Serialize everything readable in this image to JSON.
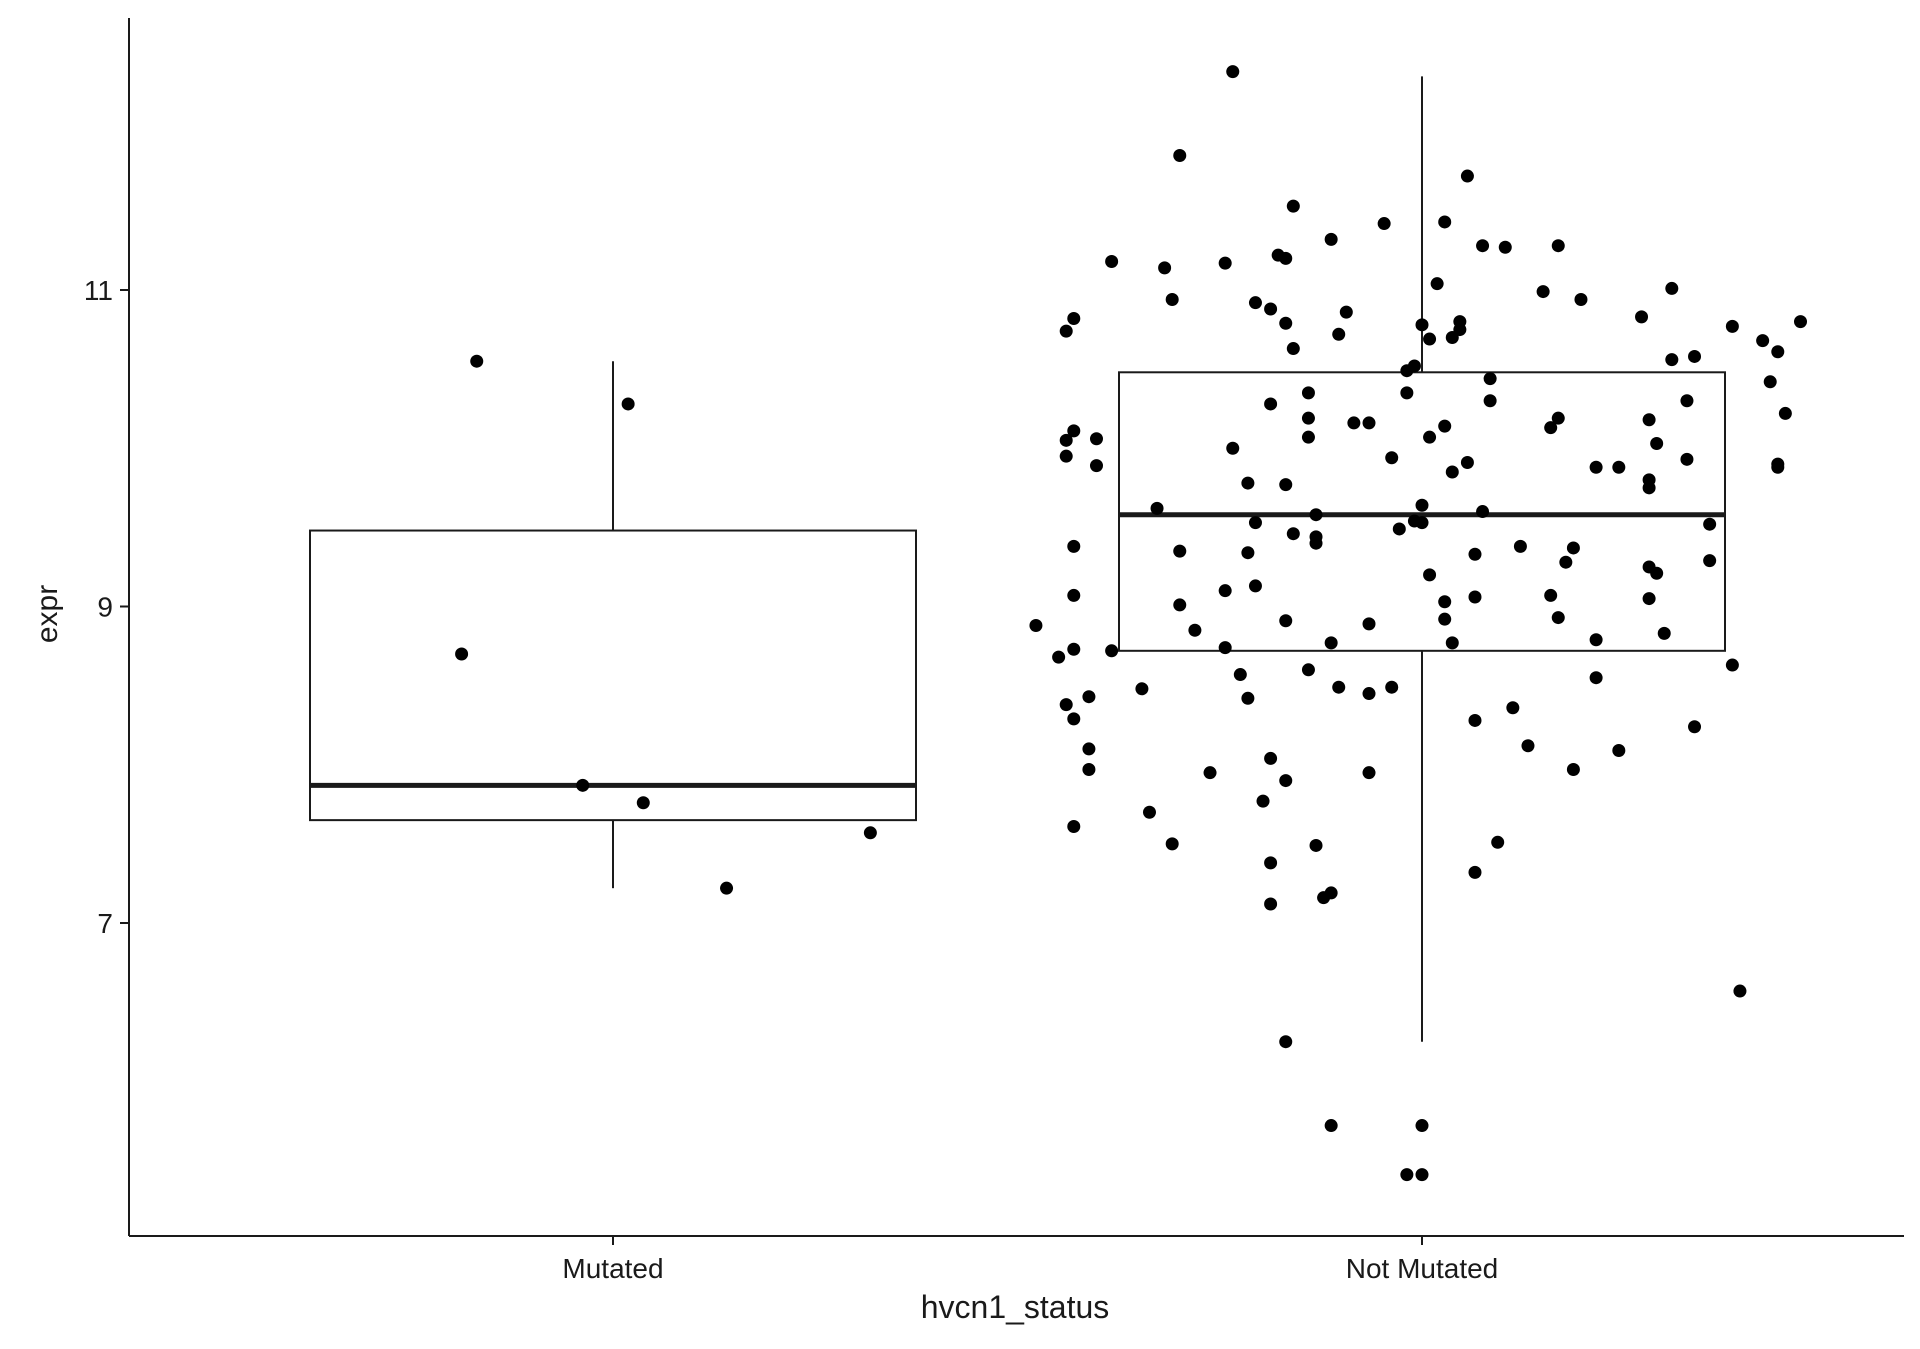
{
  "chart_data": {
    "type": "boxplot",
    "xlabel": "hvcn1_status",
    "ylabel": "expr",
    "categories": [
      "Mutated",
      "Not Mutated"
    ],
    "ylim": [
      4.8,
      12.5
    ],
    "y_ticks": [
      7,
      9,
      11
    ],
    "grid": false,
    "legend": "none",
    "colors": {
      "axis": "#1a1a1a",
      "box": "#1a1a1a",
      "point": "#000000",
      "background": "#ffffff"
    },
    "boxes": [
      {
        "category": "Mutated",
        "whisker_low": 7.22,
        "q1": 7.65,
        "median": 7.87,
        "q3": 9.48,
        "whisker_high": 10.55
      },
      {
        "category": "Not Mutated",
        "whisker_low": 6.25,
        "q1": 8.72,
        "median": 9.58,
        "q3": 10.48,
        "whisker_high": 12.35
      }
    ],
    "points": [
      {
        "category": "Mutated",
        "offset": -0.18,
        "y": 10.55
      },
      {
        "category": "Mutated",
        "offset": 0.02,
        "y": 10.28
      },
      {
        "category": "Mutated",
        "offset": -0.2,
        "y": 8.7
      },
      {
        "category": "Mutated",
        "offset": -0.04,
        "y": 7.87
      },
      {
        "category": "Mutated",
        "offset": 0.04,
        "y": 7.76
      },
      {
        "category": "Mutated",
        "offset": 0.15,
        "y": 7.22
      },
      {
        "category": "Mutated",
        "offset": 0.34,
        "y": 7.57
      },
      {
        "category": "Not Mutated",
        "offset": -0.25,
        "y": 12.38
      },
      {
        "category": "Not Mutated",
        "offset": -0.32,
        "y": 11.85
      },
      {
        "category": "Not Mutated",
        "offset": 0.06,
        "y": 11.72
      },
      {
        "category": "Not Mutated",
        "offset": -0.17,
        "y": 11.53
      },
      {
        "category": "Not Mutated",
        "offset": -0.05,
        "y": 11.42
      },
      {
        "category": "Not Mutated",
        "offset": 0.03,
        "y": 11.43
      },
      {
        "category": "Not Mutated",
        "offset": -0.12,
        "y": 11.32
      },
      {
        "category": "Not Mutated",
        "offset": 0.08,
        "y": 11.28
      },
      {
        "category": "Not Mutated",
        "offset": 0.11,
        "y": 11.27
      },
      {
        "category": "Not Mutated",
        "offset": 0.18,
        "y": 11.28
      },
      {
        "category": "Not Mutated",
        "offset": -0.18,
        "y": 11.2
      },
      {
        "category": "Not Mutated",
        "offset": -0.19,
        "y": 11.22
      },
      {
        "category": "Not Mutated",
        "offset": -0.41,
        "y": 11.18
      },
      {
        "category": "Not Mutated",
        "offset": -0.34,
        "y": 11.14
      },
      {
        "category": "Not Mutated",
        "offset": -0.26,
        "y": 11.17
      },
      {
        "category": "Not Mutated",
        "offset": 0.02,
        "y": 11.04
      },
      {
        "category": "Not Mutated",
        "offset": 0.16,
        "y": 10.99
      },
      {
        "category": "Not Mutated",
        "offset": 0.21,
        "y": 10.94
      },
      {
        "category": "Not Mutated",
        "offset": 0.33,
        "y": 11.01
      },
      {
        "category": "Not Mutated",
        "offset": -0.33,
        "y": 10.94
      },
      {
        "category": "Not Mutated",
        "offset": -0.22,
        "y": 10.92
      },
      {
        "category": "Not Mutated",
        "offset": -0.2,
        "y": 10.88
      },
      {
        "category": "Not Mutated",
        "offset": -0.1,
        "y": 10.86
      },
      {
        "category": "Not Mutated",
        "offset": -0.46,
        "y": 10.82
      },
      {
        "category": "Not Mutated",
        "offset": -0.47,
        "y": 10.74
      },
      {
        "category": "Not Mutated",
        "offset": -0.18,
        "y": 10.79
      },
      {
        "category": "Not Mutated",
        "offset": -0.11,
        "y": 10.72
      },
      {
        "category": "Not Mutated",
        "offset": 0.0,
        "y": 10.78
      },
      {
        "category": "Not Mutated",
        "offset": 0.01,
        "y": 10.69
      },
      {
        "category": "Not Mutated",
        "offset": 0.04,
        "y": 10.7
      },
      {
        "category": "Not Mutated",
        "offset": 0.05,
        "y": 10.75
      },
      {
        "category": "Not Mutated",
        "offset": 0.05,
        "y": 10.8
      },
      {
        "category": "Not Mutated",
        "offset": 0.29,
        "y": 10.83
      },
      {
        "category": "Not Mutated",
        "offset": 0.41,
        "y": 10.77
      },
      {
        "category": "Not Mutated",
        "offset": 0.45,
        "y": 10.68
      },
      {
        "category": "Not Mutated",
        "offset": 0.47,
        "y": 10.61
      },
      {
        "category": "Not Mutated",
        "offset": 0.5,
        "y": 10.8
      },
      {
        "category": "Not Mutated",
        "offset": -0.17,
        "y": 10.63
      },
      {
        "category": "Not Mutated",
        "offset": 0.33,
        "y": 10.56
      },
      {
        "category": "Not Mutated",
        "offset": 0.36,
        "y": 10.58
      },
      {
        "category": "Not Mutated",
        "offset": -0.02,
        "y": 10.49
      },
      {
        "category": "Not Mutated",
        "offset": -0.01,
        "y": 10.52
      },
      {
        "category": "Not Mutated",
        "offset": 0.09,
        "y": 10.44
      },
      {
        "category": "Not Mutated",
        "offset": 0.46,
        "y": 10.42
      },
      {
        "category": "Not Mutated",
        "offset": -0.15,
        "y": 10.35
      },
      {
        "category": "Not Mutated",
        "offset": -0.02,
        "y": 10.35
      },
      {
        "category": "Not Mutated",
        "offset": 0.09,
        "y": 10.3
      },
      {
        "category": "Not Mutated",
        "offset": 0.35,
        "y": 10.3
      },
      {
        "category": "Not Mutated",
        "offset": -0.2,
        "y": 10.28
      },
      {
        "category": "Not Mutated",
        "offset": 0.48,
        "y": 10.22
      },
      {
        "category": "Not Mutated",
        "offset": -0.15,
        "y": 10.19
      },
      {
        "category": "Not Mutated",
        "offset": 0.18,
        "y": 10.19
      },
      {
        "category": "Not Mutated",
        "offset": 0.3,
        "y": 10.18
      },
      {
        "category": "Not Mutated",
        "offset": -0.09,
        "y": 10.16
      },
      {
        "category": "Not Mutated",
        "offset": -0.07,
        "y": 10.16
      },
      {
        "category": "Not Mutated",
        "offset": 0.03,
        "y": 10.14
      },
      {
        "category": "Not Mutated",
        "offset": 0.17,
        "y": 10.13
      },
      {
        "category": "Not Mutated",
        "offset": -0.46,
        "y": 10.11
      },
      {
        "category": "Not Mutated",
        "offset": -0.15,
        "y": 10.07
      },
      {
        "category": "Not Mutated",
        "offset": 0.01,
        "y": 10.07
      },
      {
        "category": "Not Mutated",
        "offset": -0.47,
        "y": 10.05
      },
      {
        "category": "Not Mutated",
        "offset": -0.43,
        "y": 10.06
      },
      {
        "category": "Not Mutated",
        "offset": 0.31,
        "y": 10.03
      },
      {
        "category": "Not Mutated",
        "offset": -0.25,
        "y": 10.0
      },
      {
        "category": "Not Mutated",
        "offset": -0.47,
        "y": 9.95
      },
      {
        "category": "Not Mutated",
        "offset": -0.04,
        "y": 9.94
      },
      {
        "category": "Not Mutated",
        "offset": 0.06,
        "y": 9.91
      },
      {
        "category": "Not Mutated",
        "offset": 0.35,
        "y": 9.93
      },
      {
        "category": "Not Mutated",
        "offset": -0.43,
        "y": 9.89
      },
      {
        "category": "Not Mutated",
        "offset": 0.23,
        "y": 9.88
      },
      {
        "category": "Not Mutated",
        "offset": 0.26,
        "y": 9.88
      },
      {
        "category": "Not Mutated",
        "offset": 0.47,
        "y": 9.9
      },
      {
        "category": "Not Mutated",
        "offset": 0.47,
        "y": 9.88
      },
      {
        "category": "Not Mutated",
        "offset": 0.04,
        "y": 9.85
      },
      {
        "category": "Not Mutated",
        "offset": -0.23,
        "y": 9.78
      },
      {
        "category": "Not Mutated",
        "offset": -0.18,
        "y": 9.77
      },
      {
        "category": "Not Mutated",
        "offset": 0.3,
        "y": 9.8
      },
      {
        "category": "Not Mutated",
        "offset": 0.3,
        "y": 9.75
      },
      {
        "category": "Not Mutated",
        "offset": -0.0,
        "y": 9.64
      },
      {
        "category": "Not Mutated",
        "offset": -0.35,
        "y": 9.62
      },
      {
        "category": "Not Mutated",
        "offset": -0.14,
        "y": 9.58
      },
      {
        "category": "Not Mutated",
        "offset": 0.08,
        "y": 9.6
      },
      {
        "category": "Not Mutated",
        "offset": -0.22,
        "y": 9.53
      },
      {
        "category": "Not Mutated",
        "offset": -0.01,
        "y": 9.54
      },
      {
        "category": "Not Mutated",
        "offset": 0.0,
        "y": 9.53
      },
      {
        "category": "Not Mutated",
        "offset": 0.38,
        "y": 9.52
      },
      {
        "category": "Not Mutated",
        "offset": -0.03,
        "y": 9.49
      },
      {
        "category": "Not Mutated",
        "offset": -0.17,
        "y": 9.46
      },
      {
        "category": "Not Mutated",
        "offset": -0.14,
        "y": 9.44
      },
      {
        "category": "Not Mutated",
        "offset": -0.14,
        "y": 9.4
      },
      {
        "category": "Not Mutated",
        "offset": -0.46,
        "y": 9.38
      },
      {
        "category": "Not Mutated",
        "offset": 0.13,
        "y": 9.38
      },
      {
        "category": "Not Mutated",
        "offset": 0.2,
        "y": 9.37
      },
      {
        "category": "Not Mutated",
        "offset": -0.32,
        "y": 9.35
      },
      {
        "category": "Not Mutated",
        "offset": -0.23,
        "y": 9.34
      },
      {
        "category": "Not Mutated",
        "offset": 0.07,
        "y": 9.33
      },
      {
        "category": "Not Mutated",
        "offset": 0.19,
        "y": 9.28
      },
      {
        "category": "Not Mutated",
        "offset": 0.38,
        "y": 9.29
      },
      {
        "category": "Not Mutated",
        "offset": 0.3,
        "y": 9.25
      },
      {
        "category": "Not Mutated",
        "offset": 0.31,
        "y": 9.21
      },
      {
        "category": "Not Mutated",
        "offset": 0.01,
        "y": 9.2
      },
      {
        "category": "Not Mutated",
        "offset": -0.22,
        "y": 9.13
      },
      {
        "category": "Not Mutated",
        "offset": -0.26,
        "y": 9.1
      },
      {
        "category": "Not Mutated",
        "offset": -0.46,
        "y": 9.07
      },
      {
        "category": "Not Mutated",
        "offset": 0.17,
        "y": 9.07
      },
      {
        "category": "Not Mutated",
        "offset": 0.07,
        "y": 9.06
      },
      {
        "category": "Not Mutated",
        "offset": 0.03,
        "y": 9.03
      },
      {
        "category": "Not Mutated",
        "offset": -0.32,
        "y": 9.01
      },
      {
        "category": "Not Mutated",
        "offset": 0.3,
        "y": 9.05
      },
      {
        "category": "Not Mutated",
        "offset": 0.03,
        "y": 8.92
      },
      {
        "category": "Not Mutated",
        "offset": -0.18,
        "y": 8.91
      },
      {
        "category": "Not Mutated",
        "offset": 0.18,
        "y": 8.93
      },
      {
        "category": "Not Mutated",
        "offset": -0.3,
        "y": 8.85
      },
      {
        "category": "Not Mutated",
        "offset": -0.07,
        "y": 8.89
      },
      {
        "category": "Not Mutated",
        "offset": -0.51,
        "y": 8.88
      },
      {
        "category": "Not Mutated",
        "offset": 0.23,
        "y": 8.79
      },
      {
        "category": "Not Mutated",
        "offset": 0.32,
        "y": 8.83
      },
      {
        "category": "Not Mutated",
        "offset": -0.46,
        "y": 8.73
      },
      {
        "category": "Not Mutated",
        "offset": -0.41,
        "y": 8.72
      },
      {
        "category": "Not Mutated",
        "offset": -0.26,
        "y": 8.74
      },
      {
        "category": "Not Mutated",
        "offset": -0.12,
        "y": 8.77
      },
      {
        "category": "Not Mutated",
        "offset": 0.04,
        "y": 8.77
      },
      {
        "category": "Not Mutated",
        "offset": -0.48,
        "y": 8.68
      },
      {
        "category": "Not Mutated",
        "offset": -0.15,
        "y": 8.6
      },
      {
        "category": "Not Mutated",
        "offset": -0.24,
        "y": 8.57
      },
      {
        "category": "Not Mutated",
        "offset": 0.23,
        "y": 8.55
      },
      {
        "category": "Not Mutated",
        "offset": -0.37,
        "y": 8.48
      },
      {
        "category": "Not Mutated",
        "offset": -0.11,
        "y": 8.49
      },
      {
        "category": "Not Mutated",
        "offset": -0.07,
        "y": 8.45
      },
      {
        "category": "Not Mutated",
        "offset": -0.04,
        "y": 8.49
      },
      {
        "category": "Not Mutated",
        "offset": -0.44,
        "y": 8.43
      },
      {
        "category": "Not Mutated",
        "offset": -0.23,
        "y": 8.42
      },
      {
        "category": "Not Mutated",
        "offset": -0.47,
        "y": 8.38
      },
      {
        "category": "Not Mutated",
        "offset": 0.12,
        "y": 8.36
      },
      {
        "category": "Not Mutated",
        "offset": -0.46,
        "y": 8.29
      },
      {
        "category": "Not Mutated",
        "offset": 0.07,
        "y": 8.28
      },
      {
        "category": "Not Mutated",
        "offset": 0.36,
        "y": 8.24
      },
      {
        "category": "Not Mutated",
        "offset": 0.14,
        "y": 8.12
      },
      {
        "category": "Not Mutated",
        "offset": -0.44,
        "y": 8.1
      },
      {
        "category": "Not Mutated",
        "offset": 0.26,
        "y": 8.09
      },
      {
        "category": "Not Mutated",
        "offset": -0.2,
        "y": 8.04
      },
      {
        "category": "Not Mutated",
        "offset": -0.44,
        "y": 7.97
      },
      {
        "category": "Not Mutated",
        "offset": 0.2,
        "y": 7.97
      },
      {
        "category": "Not Mutated",
        "offset": -0.28,
        "y": 7.95
      },
      {
        "category": "Not Mutated",
        "offset": -0.07,
        "y": 7.95
      },
      {
        "category": "Not Mutated",
        "offset": -0.18,
        "y": 7.9
      },
      {
        "category": "Not Mutated",
        "offset": -0.21,
        "y": 7.77
      },
      {
        "category": "Not Mutated",
        "offset": -0.36,
        "y": 7.7
      },
      {
        "category": "Not Mutated",
        "offset": -0.46,
        "y": 7.61
      },
      {
        "category": "Not Mutated",
        "offset": -0.33,
        "y": 7.5
      },
      {
        "category": "Not Mutated",
        "offset": 0.1,
        "y": 7.51
      },
      {
        "category": "Not Mutated",
        "offset": -0.14,
        "y": 7.49
      },
      {
        "category": "Not Mutated",
        "offset": -0.2,
        "y": 7.38
      },
      {
        "category": "Not Mutated",
        "offset": 0.07,
        "y": 7.32
      },
      {
        "category": "Not Mutated",
        "offset": -0.12,
        "y": 7.19
      },
      {
        "category": "Not Mutated",
        "offset": -0.13,
        "y": 7.16
      },
      {
        "category": "Not Mutated",
        "offset": -0.2,
        "y": 7.12
      },
      {
        "category": "Not Mutated",
        "offset": 0.41,
        "y": 8.63
      },
      {
        "category": "Not Mutated",
        "offset": 0.42,
        "y": 6.57
      },
      {
        "category": "Not Mutated",
        "offset": -0.18,
        "y": 6.25
      },
      {
        "category": "Not Mutated",
        "offset": -0.12,
        "y": 5.72
      },
      {
        "category": "Not Mutated",
        "offset": 0.0,
        "y": 5.72
      },
      {
        "category": "Not Mutated",
        "offset": -0.0,
        "y": 5.41
      },
      {
        "category": "Not Mutated",
        "offset": -0.02,
        "y": 5.41
      }
    ]
  }
}
